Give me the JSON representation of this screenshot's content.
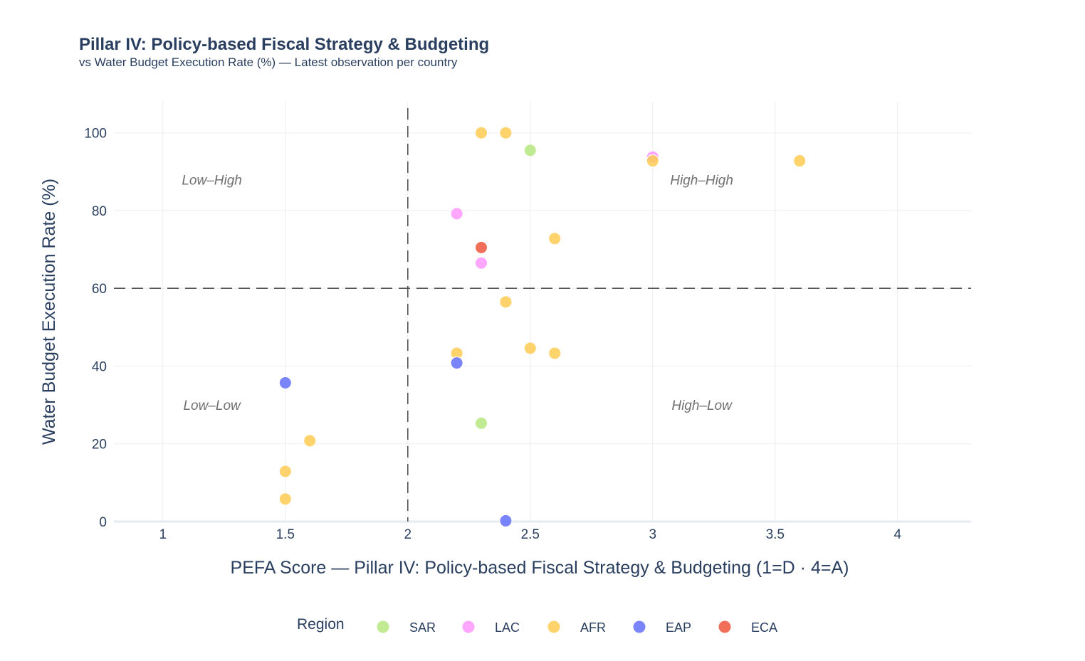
{
  "chart_data": {
    "type": "scatter",
    "title": "Pillar IV: Policy-based Fiscal Strategy & Budgeting",
    "subtitle": "vs Water Budget Execution Rate (%) — Latest observation per country",
    "xlabel": "PEFA Score — Pillar IV: Policy-based Fiscal Strategy & Budgeting (1=D · 4=A)",
    "ylabel": "Water Budget Execution Rate (%)",
    "xlim": [
      0.8,
      4.3
    ],
    "ylim": [
      0,
      108
    ],
    "x_ticks": [
      1,
      1.5,
      2,
      2.5,
      3,
      3.5,
      4
    ],
    "y_ticks": [
      0,
      20,
      40,
      60,
      80,
      100
    ],
    "grid": true,
    "reference_lines": {
      "x": 2,
      "y": 60,
      "style": "dashed"
    },
    "quadrant_labels": [
      {
        "text": "Low–High",
        "x": 1.2,
        "y": 88
      },
      {
        "text": "High–High",
        "x": 3.2,
        "y": 88
      },
      {
        "text": "Low–Low",
        "x": 1.2,
        "y": 30
      },
      {
        "text": "High–Low",
        "x": 3.2,
        "y": 30
      }
    ],
    "legend": {
      "title": "Region",
      "placement": "bottom-center"
    },
    "series": [
      {
        "name": "SAR",
        "color": "#b6e880",
        "points": [
          [
            2.5,
            95.5
          ],
          [
            2.3,
            25.3
          ]
        ]
      },
      {
        "name": "LAC",
        "color": "#ff97ff",
        "points": [
          [
            3.0,
            93.8
          ],
          [
            2.2,
            79.2
          ],
          [
            2.3,
            66.5
          ]
        ]
      },
      {
        "name": "AFR",
        "color": "#fecb52",
        "points": [
          [
            2.3,
            100
          ],
          [
            2.4,
            100
          ],
          [
            3.0,
            92.8
          ],
          [
            3.6,
            92.8
          ],
          [
            2.6,
            72.8
          ],
          [
            2.4,
            56.5
          ],
          [
            2.5,
            44.6
          ],
          [
            2.2,
            43.3
          ],
          [
            2.6,
            43.3
          ],
          [
            1.6,
            20.8
          ],
          [
            1.5,
            12.9
          ],
          [
            1.5,
            5.8
          ]
        ]
      },
      {
        "name": "EAP",
        "color": "#636efa",
        "points": [
          [
            2.2,
            40.8
          ],
          [
            1.5,
            35.7
          ],
          [
            2.4,
            0.2
          ]
        ]
      },
      {
        "name": "ECA",
        "color": "#ef553b",
        "points": [
          [
            2.3,
            70.5
          ]
        ]
      }
    ]
  }
}
